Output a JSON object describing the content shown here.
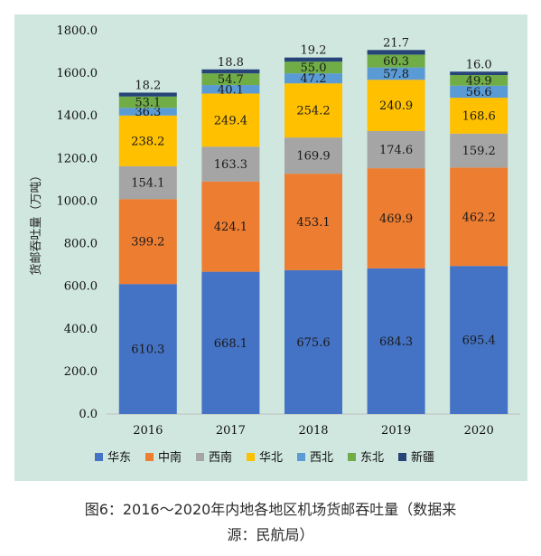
{
  "chart_data": {
    "type": "bar",
    "stacked": true,
    "categories": [
      "2016",
      "2017",
      "2018",
      "2019",
      "2020"
    ],
    "ylabel": "货邮吞吐量（万吨）",
    "ylim": [
      0,
      1800
    ],
    "yticks": [
      "0.0",
      "200.0",
      "400.0",
      "600.0",
      "800.0",
      "1000.0",
      "1200.0",
      "1400.0",
      "1600.0",
      "1800.0"
    ],
    "legend_position": "bottom",
    "series": [
      {
        "name": "华东",
        "color": "#4472c4",
        "values": [
          610.3,
          668.1,
          675.6,
          684.3,
          695.4
        ]
      },
      {
        "name": "中南",
        "color": "#ed7d31",
        "values": [
          399.2,
          424.1,
          453.1,
          469.9,
          462.2
        ]
      },
      {
        "name": "西南",
        "color": "#a5a5a5",
        "values": [
          154.1,
          163.3,
          169.9,
          174.6,
          159.2
        ]
      },
      {
        "name": "华北",
        "color": "#ffc000",
        "values": [
          238.2,
          249.4,
          254.2,
          240.9,
          168.6
        ]
      },
      {
        "name": "西北",
        "color": "#5b9bd5",
        "values": [
          36.3,
          40.1,
          47.2,
          57.8,
          56.6
        ]
      },
      {
        "name": "东北",
        "color": "#70ad47",
        "values": [
          53.1,
          54.7,
          55.0,
          60.3,
          49.9
        ]
      },
      {
        "name": "新疆",
        "color": "#264478",
        "values": [
          18.2,
          18.8,
          19.2,
          21.7,
          16.0
        ]
      }
    ]
  },
  "caption": {
    "line1": "图6：2016～2020年内地各地区机场货邮吞吐量（数据来",
    "line2": "源：民航局）"
  }
}
